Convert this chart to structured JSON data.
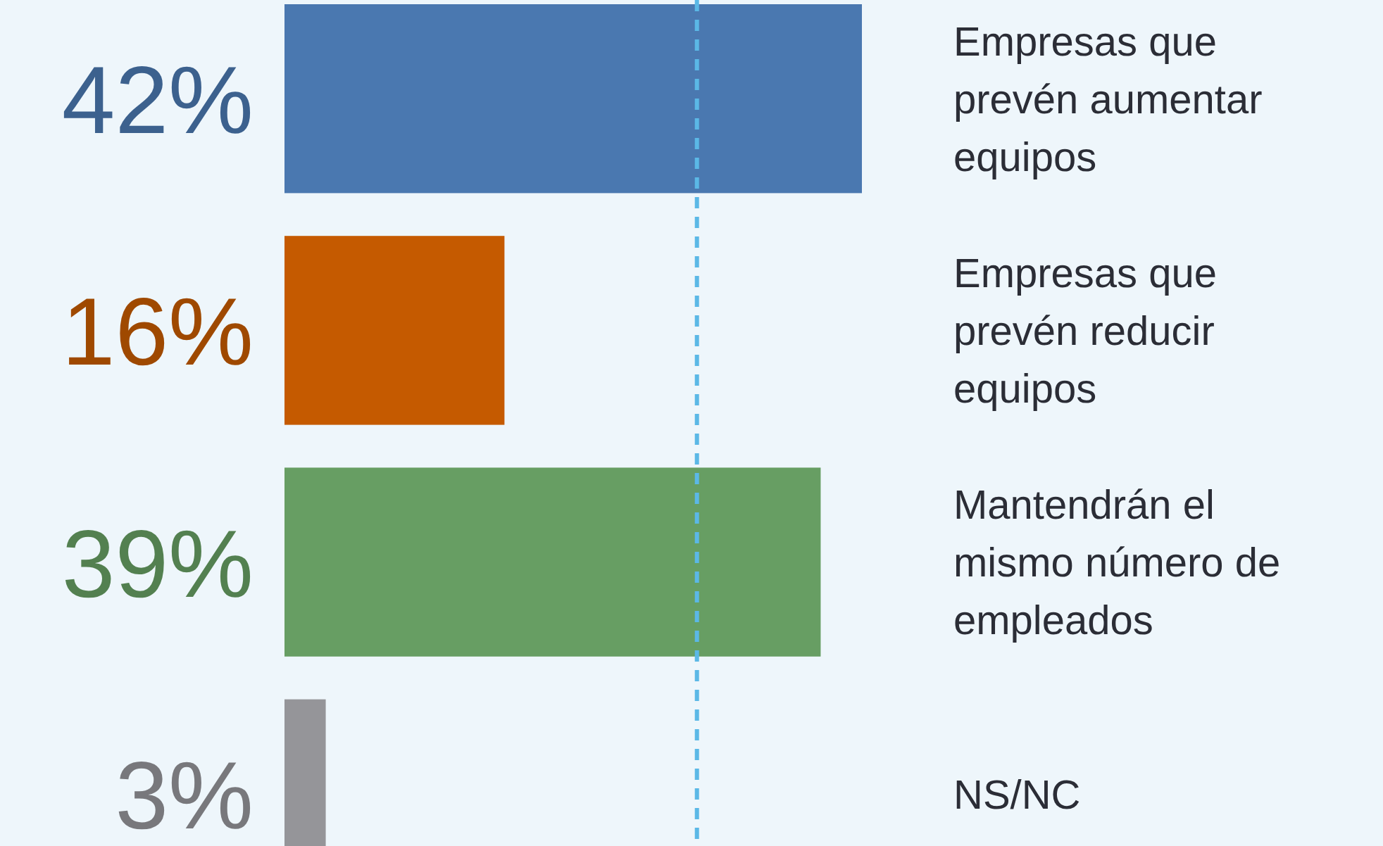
{
  "chart_data": {
    "type": "bar",
    "orientation": "horizontal",
    "categories": [
      "Empresas que prevén aumentar equipos",
      "Empresas que prevén reducir equipos",
      "Mantendrán el mismo número de empleados",
      "NS/NC"
    ],
    "values": [
      42,
      16,
      39,
      3
    ],
    "colors": [
      "#4a78b0",
      "#c55a00",
      "#679e63",
      "#959599"
    ],
    "value_labels": [
      "42%",
      "16%",
      "39%",
      "3%"
    ],
    "xlim": [
      0,
      42
    ],
    "ref_lines": [
      {
        "axis": "x",
        "value": 30,
        "color": "#5bb8e6",
        "line_style": "dashed"
      }
    ]
  }
}
